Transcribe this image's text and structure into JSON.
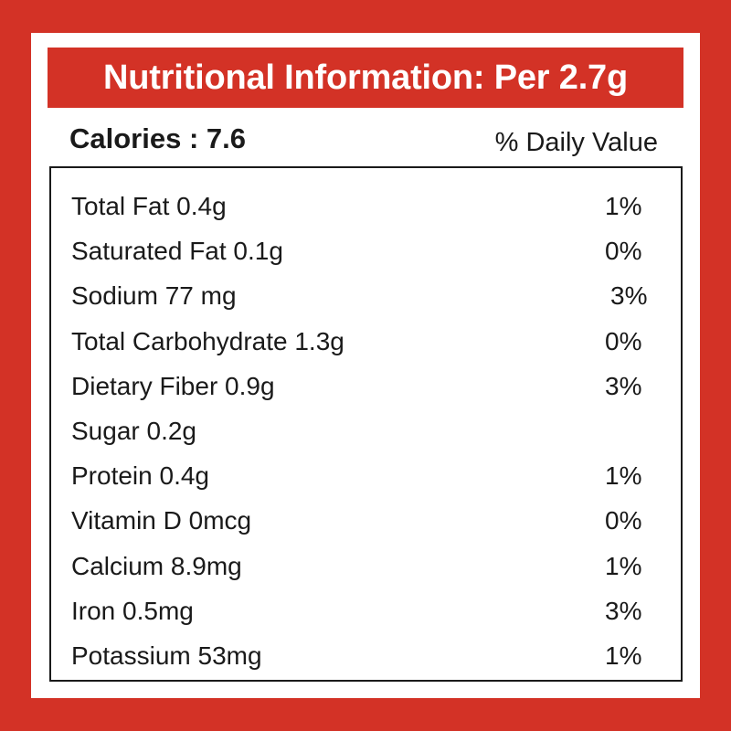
{
  "header": {
    "title": "Nutritional Information: Per 2.7g"
  },
  "summary": {
    "calories": "Calories : 7.6",
    "daily_value_label": "% Daily Value"
  },
  "colors": {
    "brand_red": "#d33226",
    "text": "#1a1a1a",
    "card": "#ffffff"
  },
  "nutrients": [
    {
      "name": "Total Fat 0.4g",
      "dv": "1%"
    },
    {
      "name": "Saturated Fat 0.1g",
      "dv": "0%"
    },
    {
      "name": "Sodium 77 mg",
      "dv": "3%"
    },
    {
      "name": "Total Carbohydrate 1.3g",
      "dv": "0%"
    },
    {
      "name": "Dietary Fiber 0.9g",
      "dv": "3%"
    },
    {
      "name": "Sugar 0.2g",
      "dv": ""
    },
    {
      "name": "Protein 0.4g",
      "dv": "1%"
    },
    {
      "name": "Vitamin D 0mcg",
      "dv": "0%"
    },
    {
      "name": "Calcium 8.9mg",
      "dv": "1%"
    },
    {
      "name": "Iron 0.5mg",
      "dv": "3%"
    },
    {
      "name": "Potassium 53mg",
      "dv": "1%"
    }
  ]
}
